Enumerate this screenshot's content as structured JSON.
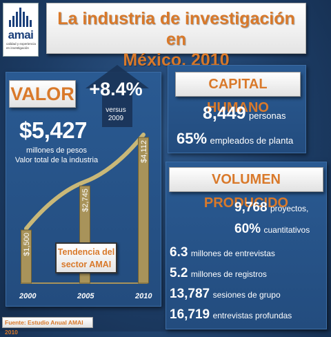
{
  "logo": {
    "brand": "amai",
    "tagline": "calidad y experiencia en investigación"
  },
  "title": {
    "line1": "La industria de investigación en",
    "line2": "México. 2010"
  },
  "valor": {
    "label": "VALOR",
    "growth": "+8.4%",
    "versus": "versus",
    "versus_year": "2009",
    "total": "$5,427",
    "unit_line1": "millones de pesos",
    "unit_line2": "Valor total de la industria"
  },
  "chart_data": {
    "type": "bar",
    "categories": [
      "2000",
      "2005",
      "2010"
    ],
    "values": [
      1500,
      2745,
      4112
    ],
    "value_labels": [
      "$1,500",
      "$2,745",
      "$4,112"
    ],
    "ylim": [
      0,
      4600
    ],
    "trend_label_line1": "Tendencia del",
    "trend_label_line2": "sector AMAI",
    "bar_color": "#a8935a",
    "trend_color": "#c9b878"
  },
  "capital": {
    "label": "CAPITAL HUMANO",
    "persons_value": "8,449",
    "persons_text": "personas",
    "employees_value": "65%",
    "employees_text": "empleados de planta"
  },
  "volume": {
    "label": "VOLUMEN PRODUCIDO",
    "items": [
      {
        "n": "9,768",
        "t": "proyectos,"
      },
      {
        "n": "60%",
        "t": "cuantitativos"
      },
      {
        "n": "6.3",
        "t": "millones de entrevistas"
      },
      {
        "n": "5.2",
        "t": "millones de registros"
      },
      {
        "n": "13,787",
        "t": "sesiones de grupo"
      },
      {
        "n": "16,719",
        "t": "entrevistas profundas"
      }
    ]
  },
  "source": "Fuente: Estudio Anual AMAI 2010",
  "colors": {
    "accent": "#d9792a",
    "background": "#234c7e"
  }
}
